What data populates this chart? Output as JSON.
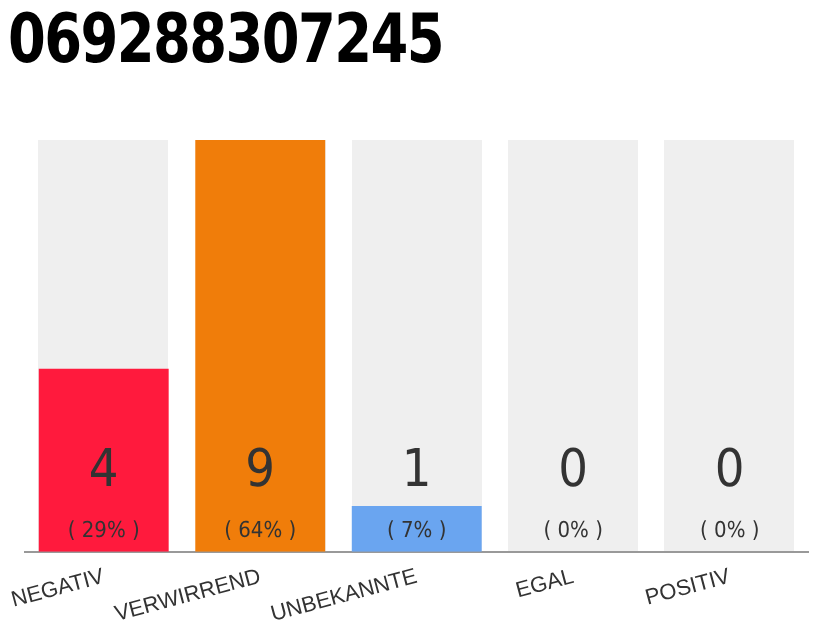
{
  "chart_data": {
    "type": "bar",
    "title": "069288307245",
    "categories": [
      "NEGATIV",
      "VERWIRREND",
      "UNBEKANNTE",
      "EGAL",
      "POSITIV"
    ],
    "values": [
      4,
      9,
      1,
      0,
      0
    ],
    "colors": [
      "#ff1a3d",
      "#f07d0a",
      "#6aa5f0",
      "#e0e0e0",
      "#e0e0e0"
    ],
    "data_labels": true,
    "tick_labels": "x",
    "annotations": [
      "( 29% )",
      "( 64% )",
      "( 7% )",
      "( 0% )",
      "( 0% )"
    ]
  }
}
